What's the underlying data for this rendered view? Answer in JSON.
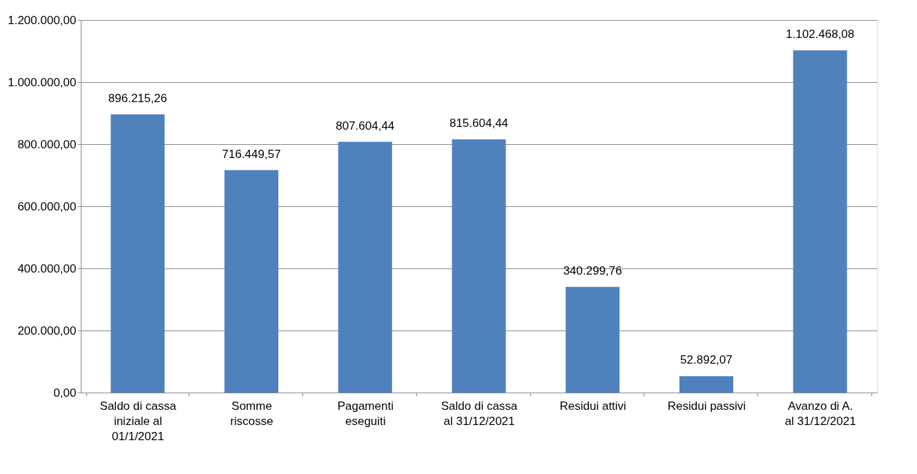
{
  "chart_data": {
    "type": "bar",
    "categories": [
      "Saldo di cassa\niniziale al\n01/1/2021",
      "Somme\nriscosse",
      "Pagamenti\neseguiti",
      "Saldo di  cassa\nal 31/12/2021",
      "Residui attivi",
      "Residui passivi",
      "Avanzo di  A.\nal 31/12/2021"
    ],
    "values": [
      896215.26,
      716449.57,
      807604.44,
      815604.44,
      340299.76,
      52892.07,
      1102468.08
    ],
    "value_labels": [
      "896.215,26",
      "716.449,57",
      "807.604,44",
      "815.604,44",
      "340.299,76",
      "52.892,07",
      "1.102.468,08"
    ],
    "color": "#4f81bd",
    "ylim": [
      0,
      1200000
    ],
    "yticks": [
      {
        "value": 0,
        "label": "0,00"
      },
      {
        "value": 200000,
        "label": "200.000,00"
      },
      {
        "value": 400000,
        "label": "400.000,00"
      },
      {
        "value": 600000,
        "label": "600.000,00"
      },
      {
        "value": 800000,
        "label": "800.000,00"
      },
      {
        "value": 1000000,
        "label": "1.000.000,00"
      },
      {
        "value": 1200000,
        "label": "1.200.000,00"
      }
    ],
    "grid": true
  }
}
